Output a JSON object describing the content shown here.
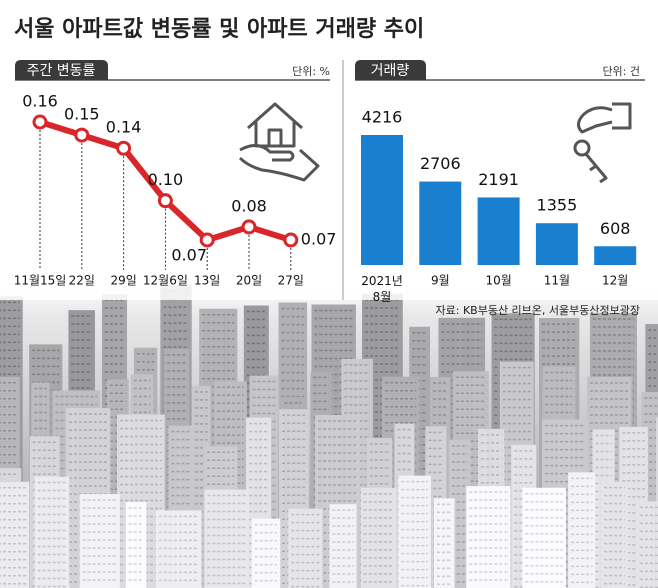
{
  "title": "서울 아파트값 변동률 및 아파트 거래량 추이",
  "source": "자료: KB부동산 리브온, 서울부동산정보광장",
  "chart_data": [
    {
      "type": "line",
      "title": "주간 변동률",
      "unit": "단위: %",
      "color": "#d9262a",
      "categories": [
        "11월15일",
        "22일",
        "29일",
        "12월6일",
        "13일",
        "20일",
        "27일"
      ],
      "values": [
        0.16,
        0.15,
        0.14,
        0.1,
        0.07,
        0.08,
        0.07
      ],
      "value_labels": [
        "0.16",
        "0.15",
        "0.14",
        "0.10",
        "0.07",
        "0.08",
        "0.07"
      ]
    },
    {
      "type": "bar",
      "title": "거래량",
      "unit": "단위: 건",
      "color": "#1b7fd0",
      "categories": [
        "2021년 8월",
        "9월",
        "10월",
        "11월",
        "12월"
      ],
      "values": [
        4216,
        2706,
        2191,
        1355,
        608
      ]
    }
  ]
}
